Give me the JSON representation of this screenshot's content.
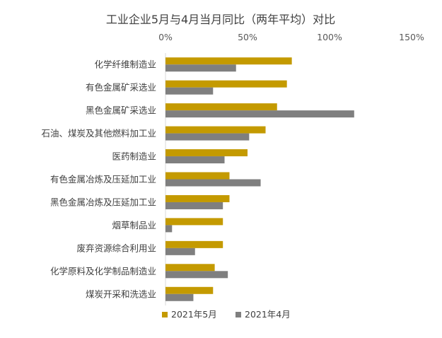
{
  "chart_data": {
    "type": "bar",
    "orientation": "horizontal",
    "title": "工业企业5月与4月当月同比（两年平均）对比",
    "xlabel": "",
    "ylabel": "",
    "xlim": [
      0,
      150
    ],
    "x_ticks": [
      "0%",
      "50%",
      "100%",
      "150%"
    ],
    "x_tick_values": [
      0,
      50,
      100,
      150
    ],
    "axis_position": "top",
    "grid": false,
    "legend_position": "bottom",
    "categories": [
      "化学纤维制造业",
      "有色金属矿采选业",
      "黑色金属矿采选业",
      "石油、煤炭及其他燃料加工业",
      "医药制造业",
      "有色金属冶炼及压延加工业",
      "黑色金属冶炼及压延加工业",
      "烟草制品业",
      "废弃资源综合利用业",
      "化学原料及化学制品制造业",
      "煤炭开采和洗选业"
    ],
    "series": [
      {
        "name": "2021年5月",
        "color": "#C49A00",
        "values": [
          77,
          74,
          68,
          61,
          50,
          39,
          39,
          35,
          35,
          30,
          29
        ]
      },
      {
        "name": "2021年4月",
        "color": "#7F7F7F",
        "values": [
          43,
          29,
          115,
          51,
          36,
          58,
          35,
          4,
          18,
          38,
          17
        ]
      }
    ]
  }
}
